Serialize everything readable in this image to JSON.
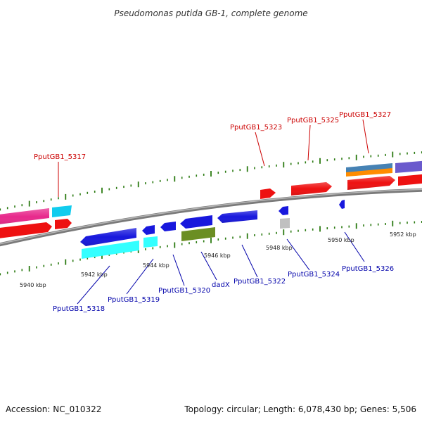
{
  "title": "Pseudomonas putida GB-1, complete genome",
  "footer": {
    "accession": "Accession: NC_010322",
    "summary": "Topology: circular; Length: 6,078,430 bp; Genes: 5,506"
  },
  "colors": {
    "forward_label": "#cc0000",
    "reverse_label": "#0000aa",
    "tick": "#2a7a10",
    "backbone": "#8a8a8a",
    "feature_red": "#ee1111",
    "feature_pink": "#e82a8c",
    "feature_cyan": "#11ccee",
    "feature_blue": "#1818dd",
    "feature_olive": "#6b8e23",
    "feature_grey": "#c0c0c0",
    "feature_steelblue": "#4682b4",
    "feature_orange": "#ff8c00",
    "feature_slate": "#6a5acd",
    "feature_aqua": "#33ffff"
  },
  "kbp_labels": [
    "5940 kbp",
    "5942 kbp",
    "5944 kbp",
    "5946 kbp",
    "5948 kbp",
    "5950 kbp",
    "5952 kbp"
  ],
  "forward_labels": [
    "PputGB1_5317",
    "PputGB1_5323",
    "PputGB1_5325",
    "PputGB1_5327"
  ],
  "reverse_labels": [
    "PputGB1_5318",
    "PputGB1_5319",
    "PputGB1_5320",
    "dadX",
    "PputGB1_5322",
    "PputGB1_5324",
    "PputGB1_5326"
  ]
}
